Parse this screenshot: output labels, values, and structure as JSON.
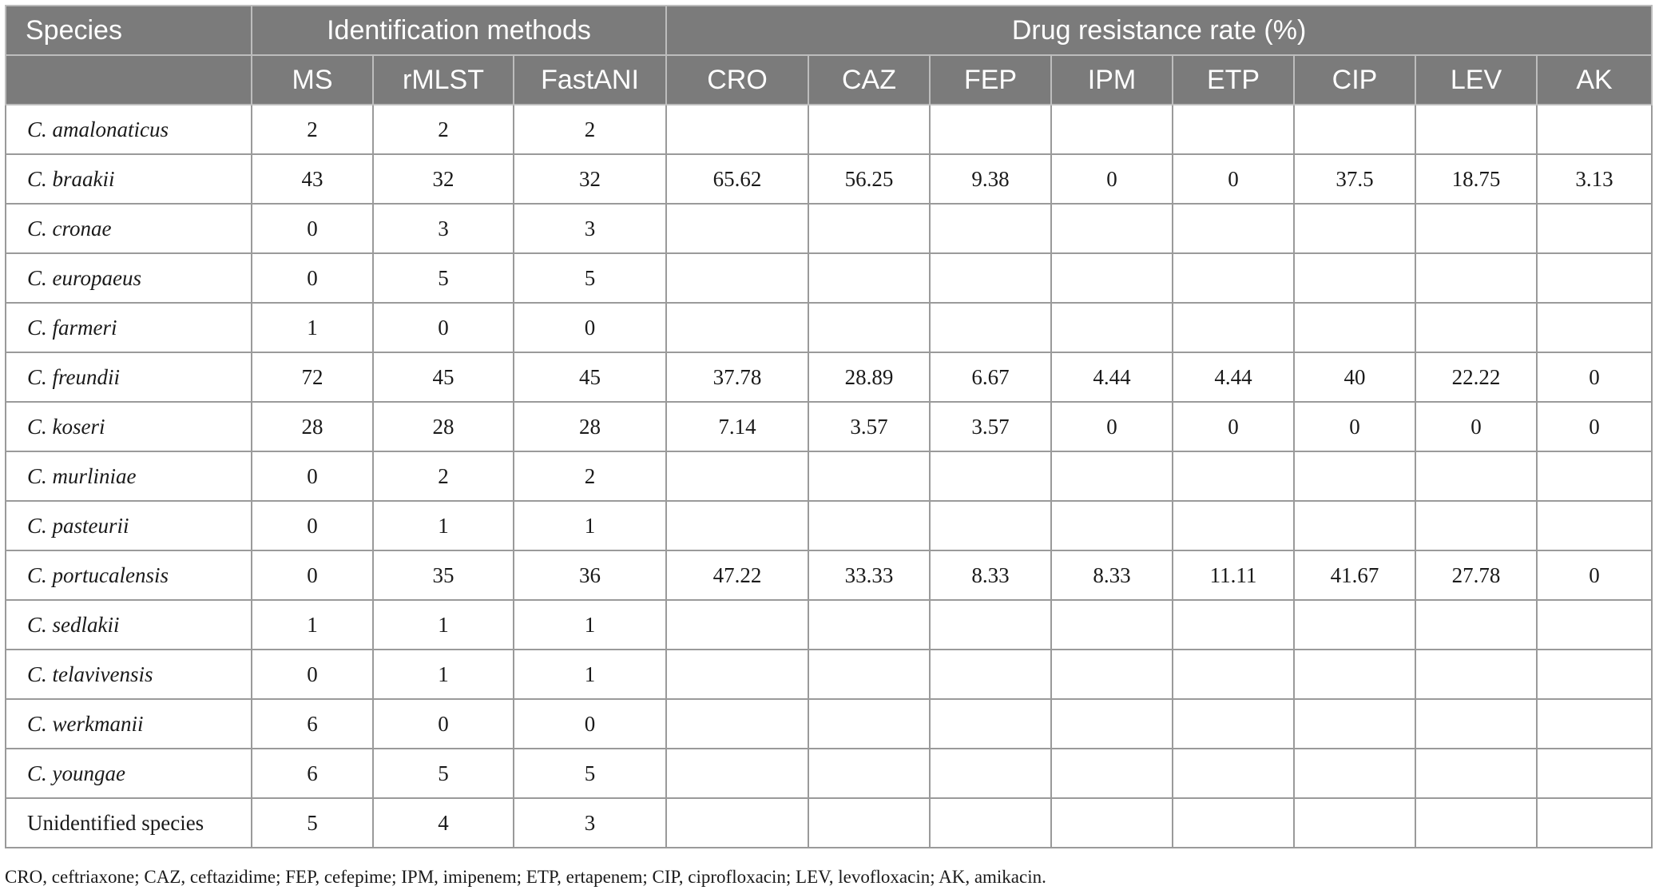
{
  "header": {
    "species": "Species",
    "identification_methods": "Identification methods",
    "drug_resistance_rate": "Drug resistance rate (%)",
    "methods": [
      "MS",
      "rMLST",
      "FastANI"
    ],
    "drugs": [
      "CRO",
      "CAZ",
      "FEP",
      "IPM",
      "ETP",
      "CIP",
      "LEV",
      "AK"
    ]
  },
  "rows": [
    {
      "species": "C. amalonaticus",
      "italic": true,
      "ms": "2",
      "rmlst": "2",
      "fastani": "2",
      "rates": [
        "",
        "",
        "",
        "",
        "",
        "",
        "",
        ""
      ]
    },
    {
      "species": "C. braakii",
      "italic": true,
      "ms": "43",
      "rmlst": "32",
      "fastani": "32",
      "rates": [
        "65.62",
        "56.25",
        "9.38",
        "0",
        "0",
        "37.5",
        "18.75",
        "3.13"
      ]
    },
    {
      "species": "C. cronae",
      "italic": true,
      "ms": "0",
      "rmlst": "3",
      "fastani": "3",
      "rates": [
        "",
        "",
        "",
        "",
        "",
        "",
        "",
        ""
      ]
    },
    {
      "species": "C. europaeus",
      "italic": true,
      "ms": "0",
      "rmlst": "5",
      "fastani": "5",
      "rates": [
        "",
        "",
        "",
        "",
        "",
        "",
        "",
        ""
      ]
    },
    {
      "species": "C. farmeri",
      "italic": true,
      "ms": "1",
      "rmlst": "0",
      "fastani": "0",
      "rates": [
        "",
        "",
        "",
        "",
        "",
        "",
        "",
        ""
      ]
    },
    {
      "species": "C. freundii",
      "italic": true,
      "ms": "72",
      "rmlst": "45",
      "fastani": "45",
      "rates": [
        "37.78",
        "28.89",
        "6.67",
        "4.44",
        "4.44",
        "40",
        "22.22",
        "0"
      ]
    },
    {
      "species": "C. koseri",
      "italic": true,
      "ms": "28",
      "rmlst": "28",
      "fastani": "28",
      "rates": [
        "7.14",
        "3.57",
        "3.57",
        "0",
        "0",
        "0",
        "0",
        "0"
      ]
    },
    {
      "species": "C. murliniae",
      "italic": true,
      "ms": "0",
      "rmlst": "2",
      "fastani": "2",
      "rates": [
        "",
        "",
        "",
        "",
        "",
        "",
        "",
        ""
      ]
    },
    {
      "species": "C. pasteurii",
      "italic": true,
      "ms": "0",
      "rmlst": "1",
      "fastani": "1",
      "rates": [
        "",
        "",
        "",
        "",
        "",
        "",
        "",
        ""
      ]
    },
    {
      "species": "C. portucalensis",
      "italic": true,
      "ms": "0",
      "rmlst": "35",
      "fastani": "36",
      "rates": [
        "47.22",
        "33.33",
        "8.33",
        "8.33",
        "11.11",
        "41.67",
        "27.78",
        "0"
      ]
    },
    {
      "species": "C. sedlakii",
      "italic": true,
      "ms": "1",
      "rmlst": "1",
      "fastani": "1",
      "rates": [
        "",
        "",
        "",
        "",
        "",
        "",
        "",
        ""
      ]
    },
    {
      "species": "C. telavivensis",
      "italic": true,
      "ms": "0",
      "rmlst": "1",
      "fastani": "1",
      "rates": [
        "",
        "",
        "",
        "",
        "",
        "",
        "",
        ""
      ]
    },
    {
      "species": "C. werkmanii",
      "italic": true,
      "ms": "6",
      "rmlst": "0",
      "fastani": "0",
      "rates": [
        "",
        "",
        "",
        "",
        "",
        "",
        "",
        ""
      ]
    },
    {
      "species": "C. youngae",
      "italic": true,
      "ms": "6",
      "rmlst": "5",
      "fastani": "5",
      "rates": [
        "",
        "",
        "",
        "",
        "",
        "",
        "",
        ""
      ]
    },
    {
      "species": "Unidentified species",
      "italic": false,
      "ms": "5",
      "rmlst": "4",
      "fastani": "3",
      "rates": [
        "",
        "",
        "",
        "",
        "",
        "",
        "",
        ""
      ]
    }
  ],
  "footnote": "CRO, ceftriaxone; CAZ, ceftazidime; FEP, cefepime; IPM, imipenem; ETP, ertapenem; CIP, ciprofloxacin; LEV, levofloxacin; AK, amikacin."
}
